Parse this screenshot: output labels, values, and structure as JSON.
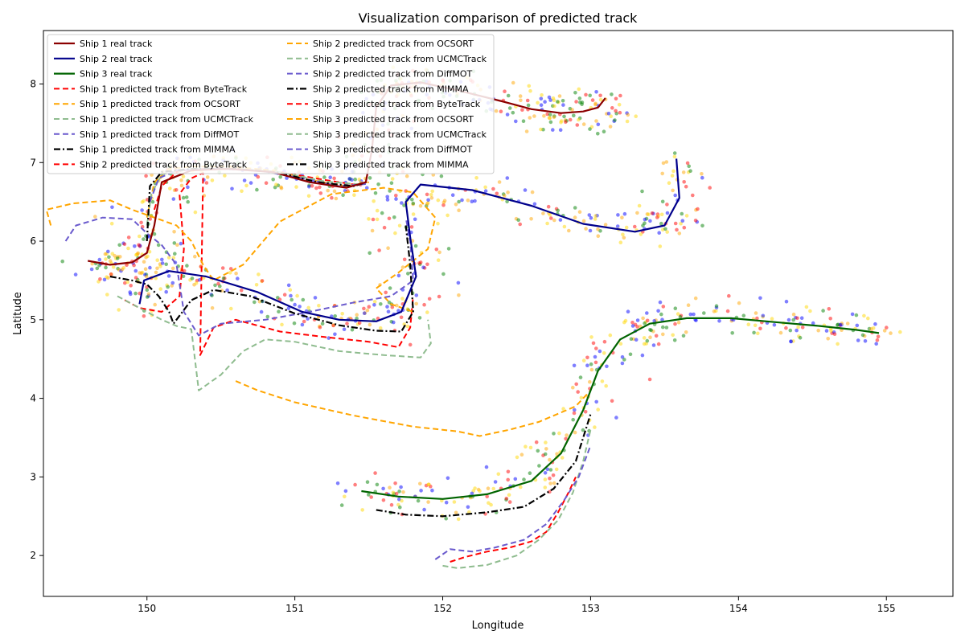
{
  "chart_data": {
    "type": "line",
    "title": "Visualization comparison of predicted track",
    "xlabel": "Longitude",
    "ylabel": "Latitude",
    "xlim": [
      149.3,
      155.45
    ],
    "ylim": [
      1.48,
      8.68
    ],
    "xticks": [
      150,
      151,
      152,
      153,
      154,
      155
    ],
    "yticks": [
      2,
      3,
      4,
      5,
      6,
      7,
      8
    ],
    "grid": false,
    "legend_position": "upper-left",
    "colors": {
      "ship1_real": "#8b0000",
      "ship2_real": "#00008b",
      "ship3_real": "#006400",
      "bytetrack": "#ff0000",
      "ocsort": "#ffa500",
      "ucmctrack": "#8fbc8f",
      "diffmot": "#6a5acd",
      "mimma": "#000000"
    },
    "observation_points": {
      "description_colors": [
        "#ff0000",
        "#0000ff",
        "#ffa500",
        "#ffd700",
        "#008000"
      ],
      "spread_deg": 0.13
    },
    "series": [
      {
        "name": "Ship 1 real track",
        "color_key": "ship1_real",
        "style": "solid",
        "width": 2.2,
        "x": [
          149.6,
          149.75,
          149.9,
          150.0,
          150.05,
          150.1,
          150.3,
          150.55,
          150.85,
          151.1,
          151.35,
          151.48,
          151.52,
          151.55,
          151.65,
          151.85,
          152.1,
          152.4,
          152.6,
          152.8,
          152.95,
          153.05,
          153.1
        ],
        "y": [
          5.75,
          5.7,
          5.73,
          5.85,
          6.2,
          6.75,
          6.9,
          6.92,
          6.88,
          6.75,
          6.68,
          6.75,
          7.15,
          7.7,
          7.98,
          8.02,
          7.92,
          7.78,
          7.68,
          7.63,
          7.65,
          7.7,
          7.82
        ]
      },
      {
        "name": "Ship 2 real track",
        "color_key": "ship2_real",
        "style": "solid",
        "width": 2.2,
        "x": [
          149.95,
          149.98,
          150.15,
          150.4,
          150.75,
          151.05,
          151.3,
          151.55,
          151.72,
          151.82,
          151.78,
          151.75,
          151.85,
          152.2,
          152.6,
          152.95,
          153.3,
          153.5,
          153.6,
          153.58
        ],
        "y": [
          5.2,
          5.5,
          5.62,
          5.55,
          5.35,
          5.1,
          5.0,
          4.98,
          5.1,
          5.55,
          6.05,
          6.5,
          6.72,
          6.65,
          6.45,
          6.22,
          6.12,
          6.2,
          6.55,
          7.05
        ]
      },
      {
        "name": "Ship 3 real track",
        "color_key": "ship3_real",
        "style": "solid",
        "width": 2.2,
        "x": [
          151.45,
          151.7,
          152.0,
          152.3,
          152.6,
          152.8,
          152.95,
          153.05,
          153.2,
          153.4,
          153.65,
          153.95,
          154.25,
          154.55,
          154.8,
          154.95
        ],
        "y": [
          2.82,
          2.75,
          2.72,
          2.78,
          2.95,
          3.3,
          3.85,
          4.35,
          4.75,
          4.95,
          5.02,
          5.02,
          4.97,
          4.92,
          4.87,
          4.83
        ]
      },
      {
        "name": "Ship 1 predicted track from ByteTrack",
        "color_key": "bytetrack",
        "style": "dashed",
        "width": 2,
        "x": [
          150.05,
          150.1,
          150.2,
          150.25,
          150.35,
          150.6,
          150.9,
          151.2,
          151.4,
          151.5
        ],
        "y": [
          6.4,
          6.7,
          6.88,
          6.9,
          6.92,
          6.92,
          6.88,
          6.78,
          6.72,
          6.75
        ]
      },
      {
        "name": "Ship 1 predicted track from OCSORT",
        "color_key": "ocsort",
        "style": "dashed",
        "width": 2,
        "x": [
          150.0,
          150.05,
          150.15,
          150.3,
          150.55,
          150.85,
          151.1,
          151.35,
          151.5
        ],
        "y": [
          6.3,
          6.75,
          6.92,
          6.95,
          6.95,
          6.9,
          6.78,
          6.7,
          6.75
        ]
      },
      {
        "name": "Ship 1 predicted track from UCMCTrack",
        "color_key": "ucmctrack",
        "style": "dashed",
        "width": 2,
        "x": [
          150.0,
          150.03,
          150.1,
          150.3,
          150.6,
          150.9,
          151.2,
          151.45
        ],
        "y": [
          6.2,
          6.6,
          6.85,
          6.92,
          6.92,
          6.88,
          6.76,
          6.72
        ]
      },
      {
        "name": "Ship 1 predicted track from DiffMOT",
        "color_key": "diffmot",
        "style": "dashed",
        "width": 2,
        "x": [
          150.02,
          150.08,
          150.2,
          150.45,
          150.75,
          151.05,
          151.3,
          151.5
        ],
        "y": [
          6.5,
          6.8,
          6.9,
          6.92,
          6.9,
          6.8,
          6.7,
          6.73
        ]
      },
      {
        "name": "Ship 1 predicted track from MIMMA",
        "color_key": "mimma",
        "style": "dashdot",
        "width": 2.2,
        "x": [
          150.0,
          150.02,
          150.1,
          150.3,
          150.6,
          150.9,
          151.15,
          151.4,
          151.5
        ],
        "y": [
          6.0,
          6.7,
          6.88,
          6.92,
          6.92,
          6.87,
          6.75,
          6.7,
          6.76
        ]
      },
      {
        "name": "Ship 2 predicted track from ByteTrack",
        "color_key": "bytetrack",
        "style": "dashed",
        "width": 2,
        "x": [
          149.85,
          149.95,
          150.1,
          150.22,
          150.25,
          150.22,
          150.3,
          150.38,
          150.36,
          150.45,
          150.6,
          150.9,
          151.2,
          151.5,
          151.7,
          151.78,
          151.8
        ],
        "y": [
          5.25,
          5.15,
          5.1,
          5.3,
          5.9,
          6.6,
          6.8,
          6.87,
          4.55,
          4.9,
          5.0,
          4.85,
          4.78,
          4.72,
          4.65,
          4.9,
          5.3
        ]
      },
      {
        "name": "Ship 2 predicted track from OCSORT",
        "color_key": "ocsort",
        "style": "dashed",
        "width": 2,
        "x": [
          149.35,
          149.32,
          149.5,
          149.75,
          149.9,
          150.05,
          150.2,
          150.3,
          150.38,
          150.45,
          150.65,
          150.9,
          151.25,
          151.6,
          151.8,
          151.95,
          151.9,
          151.7,
          151.55,
          151.65,
          151.8
        ],
        "y": [
          6.2,
          6.4,
          6.48,
          6.52,
          6.4,
          6.3,
          6.2,
          6.0,
          5.7,
          5.5,
          5.7,
          6.25,
          6.6,
          6.68,
          6.62,
          6.3,
          5.9,
          5.6,
          5.4,
          5.2,
          5.1
        ]
      },
      {
        "name": "Ship 2 predicted track from UCMCTrack",
        "color_key": "ucmctrack",
        "style": "dashed",
        "width": 2,
        "x": [
          149.8,
          149.95,
          150.1,
          150.2,
          150.3,
          150.35,
          150.5,
          150.65,
          150.8,
          151.0,
          151.3,
          151.6,
          151.85,
          151.92,
          151.9
        ],
        "y": [
          5.3,
          5.15,
          5.0,
          4.92,
          4.88,
          4.1,
          4.3,
          4.6,
          4.75,
          4.72,
          4.6,
          4.55,
          4.52,
          4.7,
          5.0
        ]
      },
      {
        "name": "Ship 2 predicted track from DiffMOT",
        "color_key": "diffmot",
        "style": "dashed",
        "width": 2,
        "x": [
          149.45,
          149.52,
          149.7,
          149.9,
          150.0,
          150.1,
          150.2,
          150.25,
          150.35,
          150.5,
          150.8,
          151.1,
          151.4,
          151.65,
          151.8,
          151.78,
          151.75
        ],
        "y": [
          6.0,
          6.2,
          6.3,
          6.28,
          6.1,
          5.95,
          5.7,
          5.1,
          4.8,
          4.95,
          5.0,
          5.1,
          5.22,
          5.3,
          5.5,
          6.0,
          6.3
        ]
      },
      {
        "name": "Ship 2 predicted track from MIMMA",
        "color_key": "mimma",
        "style": "dashdot",
        "width": 2.2,
        "x": [
          149.75,
          149.9,
          150.0,
          150.08,
          150.15,
          150.18,
          150.3,
          150.45,
          150.7,
          151.0,
          151.3,
          151.55,
          151.72,
          151.8,
          151.78,
          151.75
        ],
        "y": [
          5.55,
          5.5,
          5.45,
          5.3,
          5.1,
          4.95,
          5.25,
          5.38,
          5.3,
          5.08,
          4.93,
          4.86,
          4.85,
          5.1,
          5.7,
          6.2
        ]
      },
      {
        "name": "Ship 3 predicted track from ByteTrack",
        "color_key": "bytetrack",
        "style": "dashed",
        "width": 2,
        "x": [
          152.05,
          152.15,
          152.3,
          152.45,
          152.6,
          152.7,
          152.78,
          152.85,
          152.9
        ],
        "y": [
          1.92,
          1.98,
          2.05,
          2.1,
          2.18,
          2.3,
          2.55,
          2.8,
          3.0
        ]
      },
      {
        "name": "Ship 3 predicted track from OCSORT",
        "color_key": "ocsort",
        "style": "dashed",
        "width": 2,
        "x": [
          150.6,
          150.75,
          151.0,
          151.4,
          151.8,
          152.1,
          152.25,
          152.45,
          152.65,
          152.8,
          152.9,
          153.0
        ],
        "y": [
          4.22,
          4.1,
          3.95,
          3.78,
          3.64,
          3.58,
          3.52,
          3.6,
          3.7,
          3.82,
          3.9,
          4.1
        ]
      },
      {
        "name": "Ship 3 predicted track from UCMCTrack",
        "color_key": "ucmctrack",
        "style": "dashed",
        "width": 2,
        "x": [
          152.0,
          152.1,
          152.3,
          152.5,
          152.65,
          152.78,
          152.88,
          152.95,
          153.0
        ],
        "y": [
          1.87,
          1.84,
          1.88,
          2.0,
          2.2,
          2.45,
          2.8,
          3.2,
          3.6
        ]
      },
      {
        "name": "Ship 3 predicted track from DiffMOT",
        "color_key": "diffmot",
        "style": "dashed",
        "width": 2,
        "x": [
          151.95,
          152.05,
          152.2,
          152.35,
          152.55,
          152.7,
          152.82,
          152.92,
          153.0
        ],
        "y": [
          1.95,
          2.08,
          2.05,
          2.1,
          2.2,
          2.4,
          2.7,
          3.0,
          3.4
        ]
      },
      {
        "name": "Ship 3 predicted track from MIMMA",
        "color_key": "mimma",
        "style": "dashdot",
        "width": 2.2,
        "x": [
          151.55,
          151.75,
          152.0,
          152.3,
          152.55,
          152.75,
          152.9,
          153.0
        ],
        "y": [
          2.58,
          2.52,
          2.5,
          2.55,
          2.62,
          2.85,
          3.2,
          3.8
        ]
      }
    ]
  }
}
